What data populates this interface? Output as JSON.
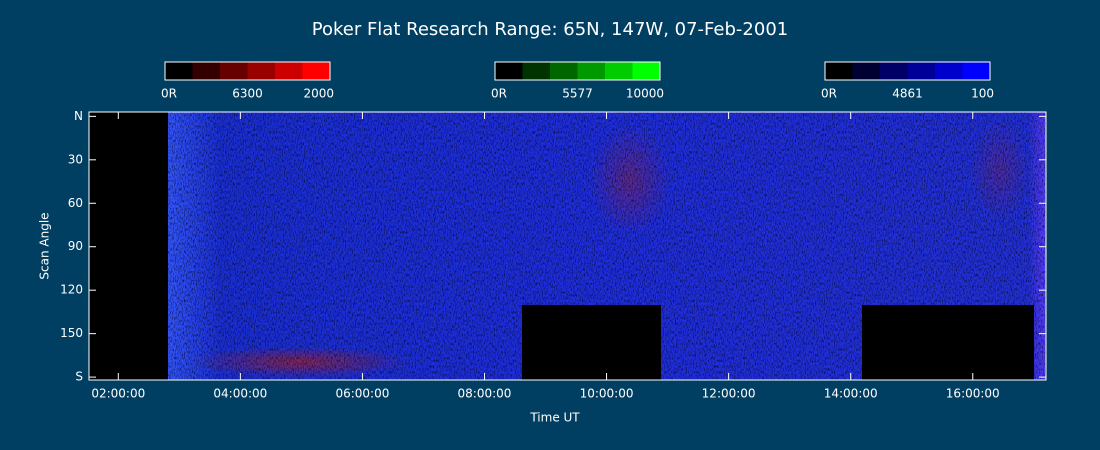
{
  "chart_data": {
    "type": "keogram",
    "title": "Poker Flat Research Range: 65N, 147W, 07-Feb-2001",
    "x_label": "Time UT",
    "y_label": "Scan Angle",
    "xlim": [
      1.52,
      17.2
    ],
    "xticks": [
      {
        "value": 2,
        "label": "02:00:00"
      },
      {
        "value": 4,
        "label": "04:00:00"
      },
      {
        "value": 6,
        "label": "06:00:00"
      },
      {
        "value": 8,
        "label": "08:00:00"
      },
      {
        "value": 10,
        "label": "10:00:00"
      },
      {
        "value": 12,
        "label": "12:00:00"
      },
      {
        "value": 14,
        "label": "14:00:00"
      },
      {
        "value": 16,
        "label": "16:00:00"
      }
    ],
    "ylim": [
      -3,
      182
    ],
    "yticks": [
      {
        "value": 0,
        "label": "N"
      },
      30,
      60,
      90,
      120,
      150,
      {
        "value": 180,
        "label": "S"
      }
    ],
    "colorbars": [
      {
        "labels": [
          "0R",
          "6300",
          "2000"
        ],
        "colors": [
          "#000000",
          "#330000",
          "#660000",
          "#990000",
          "#cc0000",
          "#ff0000"
        ]
      },
      {
        "labels": [
          "0R",
          "5577",
          "10000"
        ],
        "colors": [
          "#000000",
          "#003300",
          "#006600",
          "#009900",
          "#00cc00",
          "#00ff00"
        ]
      },
      {
        "labels": [
          "0R",
          "4861",
          "100"
        ],
        "colors": [
          "#000000",
          "#000033",
          "#000066",
          "#000099",
          "#0000cc",
          "#0000ff"
        ]
      }
    ]
  }
}
